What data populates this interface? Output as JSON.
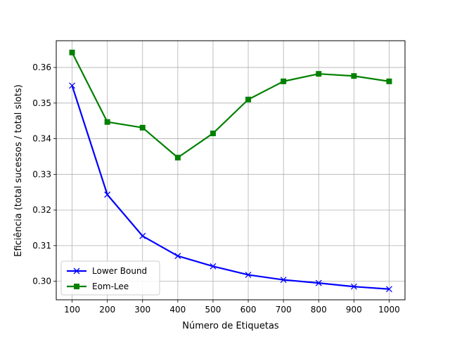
{
  "chart_data": {
    "type": "line",
    "title": "",
    "xlabel": "Número de Etiquetas",
    "ylabel": "Eficiência (total sucessos / total slots)",
    "x": [
      100,
      200,
      300,
      400,
      500,
      600,
      700,
      800,
      900,
      1000
    ],
    "xlim": [
      55,
      1045
    ],
    "ylim": [
      0.2948,
      0.3675
    ],
    "xticks": [
      100,
      200,
      300,
      400,
      500,
      600,
      700,
      800,
      900,
      1000
    ],
    "yticks": [
      0.3,
      0.31,
      0.32,
      0.33,
      0.34,
      0.35,
      0.36
    ],
    "ytick_labels": [
      "0.30",
      "0.31",
      "0.32",
      "0.33",
      "0.34",
      "0.35",
      "0.36"
    ],
    "grid": true,
    "legend_position": "lower-left",
    "series": [
      {
        "name": "Lower Bound",
        "color": "#0000ff",
        "marker": "x",
        "values": [
          0.3549,
          0.3243,
          0.3127,
          0.3071,
          0.3042,
          0.3018,
          0.3004,
          0.2995,
          0.2985,
          0.2978
        ]
      },
      {
        "name": "Eom-Lee",
        "color": "#008000",
        "marker": "square",
        "values": [
          0.3642,
          0.3447,
          0.3431,
          0.3347,
          0.3415,
          0.351,
          0.3561,
          0.3582,
          0.3576,
          0.3561
        ]
      }
    ]
  }
}
